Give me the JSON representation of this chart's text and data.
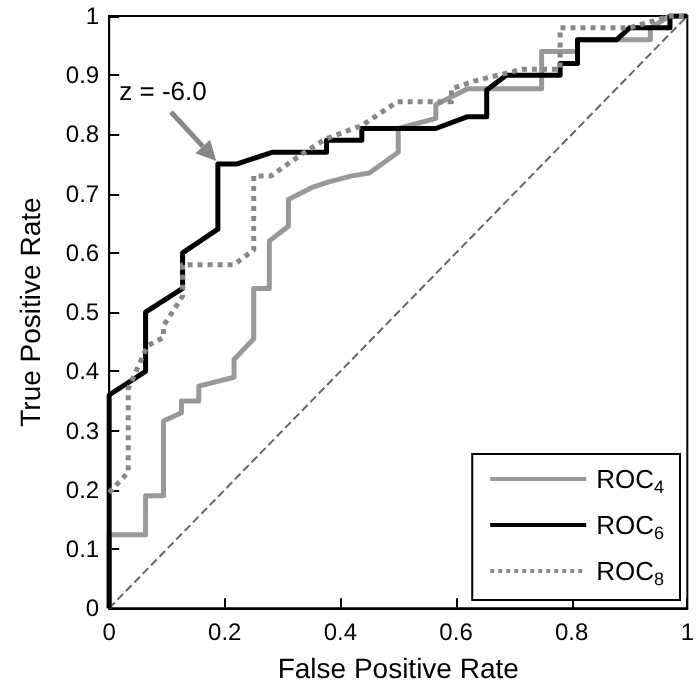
{
  "chart_data": {
    "type": "line",
    "xlabel": "False Positive Rate",
    "ylabel": "True Positive Rate",
    "xlim": [
      0,
      1
    ],
    "ylim": [
      0,
      1
    ],
    "xticks": [
      0,
      0.2,
      0.4,
      0.6,
      0.8,
      1
    ],
    "yticks": [
      0,
      0.1,
      0.2,
      0.3,
      0.4,
      0.5,
      0.6,
      0.7,
      0.8,
      0.9,
      1
    ],
    "grid": false,
    "legend": "bottom right",
    "marker": "none",
    "annotations": [
      {
        "text": "z = -6.0",
        "x": 0.19,
        "y": 0.75
      }
    ],
    "series": [
      {
        "name": "ROC$_{4}$",
        "color": "#999999",
        "line_style": "solid",
        "x": [
          0,
          0,
          0.063,
          0.063,
          0.094,
          0.094,
          0.125,
          0.125,
          0.155,
          0.155,
          0.216,
          0.216,
          0.25,
          0.25,
          0.277,
          0.277,
          0.31,
          0.31,
          0.35,
          0.38,
          0.42,
          0.45,
          0.5,
          0.5,
          0.565,
          0.565,
          0.62,
          0.748,
          0.748,
          0.81,
          0.81,
          0.936,
          0.936,
          0.97,
          1
        ],
        "values": [
          0,
          0.124,
          0.124,
          0.19,
          0.19,
          0.316,
          0.33,
          0.35,
          0.35,
          0.375,
          0.39,
          0.42,
          0.455,
          0.54,
          0.54,
          0.62,
          0.645,
          0.69,
          0.71,
          0.72,
          0.73,
          0.735,
          0.77,
          0.81,
          0.827,
          0.85,
          0.877,
          0.877,
          0.94,
          0.94,
          0.96,
          0.96,
          0.98,
          1,
          1
        ]
      },
      {
        "name": "ROC$_{6}$",
        "color": "#000000",
        "line_style": "solid",
        "x": [
          0,
          0,
          0.063,
          0.063,
          0.127,
          0.127,
          0.188,
          0.188,
          0.22,
          0.283,
          0.376,
          0.376,
          0.437,
          0.437,
          0.565,
          0.62,
          0.653,
          0.653,
          0.687,
          0.78,
          0.78,
          0.81,
          0.81,
          0.878,
          0.9,
          0.97,
          0.97,
          1
        ],
        "values": [
          0,
          0.36,
          0.4,
          0.5,
          0.54,
          0.6,
          0.64,
          0.75,
          0.75,
          0.77,
          0.77,
          0.79,
          0.79,
          0.81,
          0.81,
          0.83,
          0.83,
          0.875,
          0.9,
          0.9,
          0.92,
          0.92,
          0.96,
          0.96,
          0.98,
          0.98,
          1,
          1
        ]
      },
      {
        "name": "ROC$_{8}$",
        "color": "#888888",
        "line_style": "dotted",
        "x": [
          0,
          0.033,
          0.033,
          0.066,
          0.094,
          0.094,
          0.127,
          0.127,
          0.216,
          0.25,
          0.25,
          0.28,
          0.338,
          0.376,
          0.437,
          0.498,
          0.592,
          0.592,
          0.631,
          0.714,
          0.78,
          0.78,
          0.9,
          0.97,
          1
        ],
        "values": [
          0.195,
          0.23,
          0.37,
          0.443,
          0.457,
          0.477,
          0.527,
          0.58,
          0.58,
          0.605,
          0.73,
          0.73,
          0.77,
          0.793,
          0.815,
          0.855,
          0.855,
          0.877,
          0.89,
          0.91,
          0.91,
          0.98,
          0.98,
          1,
          1
        ]
      },
      {
        "color": "#666666",
        "line_style": "dashed",
        "x": [
          0,
          1
        ],
        "values": [
          0,
          1
        ]
      }
    ]
  }
}
